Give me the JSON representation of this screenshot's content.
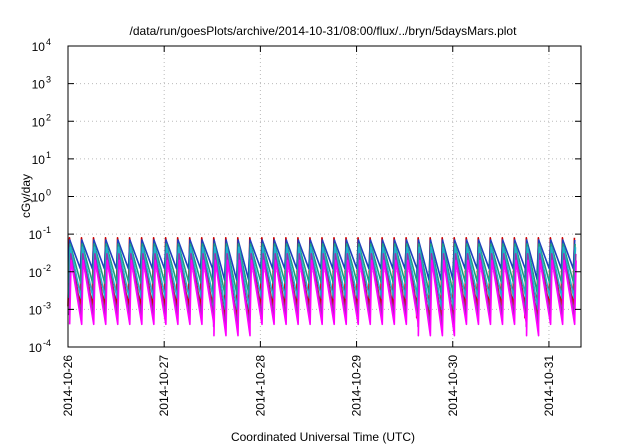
{
  "chart_data": {
    "type": "line",
    "title": "/data/run/goesPlots/archive/2014-10-31/08:00/flux/../bryn/5daysMars.plot",
    "xlabel": "Coordinated Universal Time (UTC)",
    "ylabel": "cGy/day",
    "yscale": "log",
    "ylim": [
      0.0001,
      10000
    ],
    "xlim": [
      "2014-10-26",
      "2014-10-31T08:00"
    ],
    "x_ticks": [
      "2014-10-26",
      "2014-10-27",
      "2014-10-28",
      "2014-10-29",
      "2014-10-30",
      "2014-10-31"
    ],
    "y_ticks": [
      {
        "base": "10",
        "exp": "-4"
      },
      {
        "base": "10",
        "exp": "-3"
      },
      {
        "base": "10",
        "exp": "-2"
      },
      {
        "base": "10",
        "exp": "-1"
      },
      {
        "base": "10",
        "exp": "0"
      },
      {
        "base": "10",
        "exp": "1"
      },
      {
        "base": "10",
        "exp": "2"
      },
      {
        "base": "10",
        "exp": "3"
      },
      {
        "base": "10",
        "exp": "4"
      }
    ],
    "grid": true,
    "pattern": "periodic sawtooth dose curves, about 8 cycles per day; peaks near 0.05-0.09 cGy/day; troughs between 0.0004 and 0.02 cGy/day depending on series",
    "series": [
      {
        "color": "#cc0000",
        "peak": 0.08,
        "trough": 0.0012
      },
      {
        "color": "#1f3fbf",
        "peak": 0.07,
        "trough": 0.012
      },
      {
        "color": "#1f9f7f",
        "peak": 0.055,
        "trough": 0.005
      },
      {
        "color": "#20b0d0",
        "peak": 0.045,
        "trough": 0.002
      },
      {
        "color": "#9b30b0",
        "peak": 0.03,
        "trough": 0.0007
      },
      {
        "color": "#ff00ff",
        "peak": 0.02,
        "trough": 0.0004
      }
    ]
  }
}
